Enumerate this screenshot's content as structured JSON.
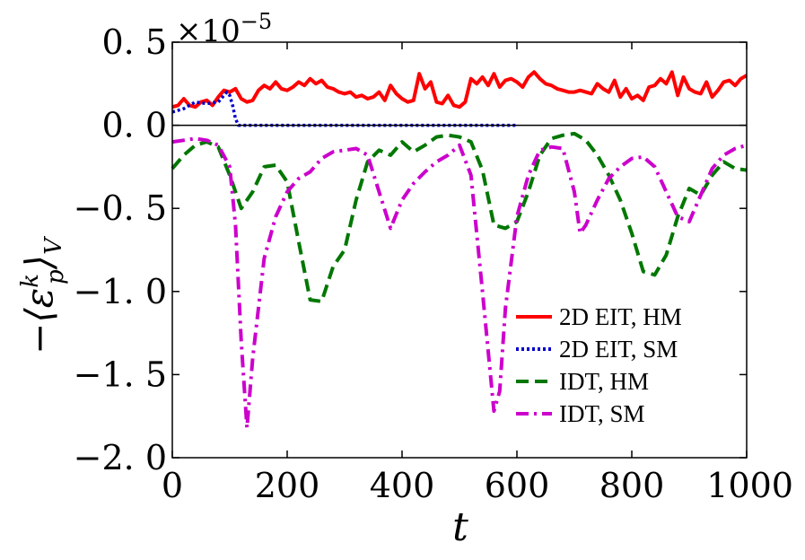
{
  "chart_data": {
    "type": "line",
    "xlabel": "t",
    "ylabel": "−⟨ε",
    "ylabel_sup": "k",
    "ylabel_sub": "p",
    "ylabel_tail": "⟩",
    "ylabel_sub2": "V",
    "y_offset_text": "×10",
    "y_offset_exp": "−5",
    "xlim": [
      0,
      1000
    ],
    "ylim": [
      -2.0,
      0.5
    ],
    "x_ticks": [
      0,
      200,
      400,
      600,
      800,
      1000
    ],
    "x_tick_labels": [
      "0",
      "200",
      "400",
      "600",
      "800",
      "1000"
    ],
    "y_ticks": [
      0.5,
      0.0,
      -0.5,
      -1.0,
      -1.5,
      -2.0
    ],
    "y_tick_labels": [
      "0. 5",
      "0. 0",
      "−0. 5",
      "−1. 0",
      "−1. 5",
      "−2. 0"
    ],
    "zero_line": true,
    "grid": false,
    "legend_position": "lower-right",
    "series": [
      {
        "name": "2D EIT, HM",
        "color": "#ff0000",
        "dash": "solid",
        "x": [
          0,
          10,
          20,
          30,
          40,
          50,
          60,
          70,
          80,
          90,
          100,
          110,
          120,
          130,
          140,
          150,
          160,
          170,
          180,
          190,
          200,
          210,
          220,
          230,
          240,
          250,
          260,
          270,
          280,
          290,
          300,
          310,
          320,
          330,
          340,
          350,
          360,
          370,
          380,
          390,
          400,
          410,
          420,
          430,
          440,
          450,
          460,
          470,
          480,
          490,
          500,
          510,
          520,
          530,
          540,
          550,
          560,
          570,
          580,
          590,
          600,
          610,
          620,
          630,
          640,
          650,
          660,
          670,
          680,
          690,
          700,
          710,
          720,
          730,
          740,
          750,
          760,
          770,
          780,
          790,
          800,
          810,
          820,
          830,
          840,
          850,
          860,
          870,
          880,
          890,
          900,
          910,
          920,
          930,
          940,
          950,
          960,
          970,
          980,
          990,
          1000
        ],
        "y": [
          0.11,
          0.12,
          0.16,
          0.12,
          0.11,
          0.14,
          0.15,
          0.12,
          0.17,
          0.21,
          0.2,
          0.22,
          0.16,
          0.14,
          0.15,
          0.21,
          0.24,
          0.22,
          0.26,
          0.22,
          0.21,
          0.23,
          0.26,
          0.24,
          0.28,
          0.25,
          0.27,
          0.23,
          0.22,
          0.2,
          0.19,
          0.2,
          0.17,
          0.18,
          0.16,
          0.17,
          0.2,
          0.15,
          0.24,
          0.19,
          0.16,
          0.14,
          0.15,
          0.31,
          0.22,
          0.26,
          0.14,
          0.13,
          0.18,
          0.12,
          0.11,
          0.14,
          0.28,
          0.25,
          0.29,
          0.24,
          0.31,
          0.23,
          0.27,
          0.28,
          0.26,
          0.23,
          0.29,
          0.32,
          0.28,
          0.25,
          0.24,
          0.22,
          0.21,
          0.2,
          0.2,
          0.21,
          0.2,
          0.19,
          0.25,
          0.22,
          0.2,
          0.27,
          0.17,
          0.22,
          0.16,
          0.18,
          0.15,
          0.23,
          0.24,
          0.28,
          0.25,
          0.32,
          0.18,
          0.29,
          0.22,
          0.2,
          0.19,
          0.26,
          0.17,
          0.21,
          0.26,
          0.27,
          0.24,
          0.28,
          0.3
        ],
        "x_src": "dense"
      },
      {
        "name": "2D EIT, SM",
        "color": "#0000cc",
        "dash": "dotted",
        "x": [
          0,
          20,
          40,
          60,
          80,
          95,
          100,
          105,
          110,
          115,
          120,
          150,
          200,
          300,
          400,
          500,
          600
        ],
        "y": [
          0.08,
          0.1,
          0.14,
          0.13,
          0.14,
          0.2,
          0.18,
          0.12,
          0.04,
          0.0,
          0.0,
          0.0,
          0.0,
          0.0,
          0.0,
          0.0,
          0.0
        ]
      },
      {
        "name": "IDT, HM",
        "color": "#007700",
        "dash": "dashed",
        "x": [
          0,
          20,
          40,
          60,
          80,
          100,
          120,
          140,
          160,
          180,
          200,
          220,
          240,
          260,
          280,
          300,
          320,
          340,
          360,
          380,
          400,
          420,
          440,
          460,
          480,
          500,
          520,
          540,
          560,
          580,
          600,
          620,
          640,
          660,
          680,
          700,
          720,
          740,
          760,
          780,
          800,
          820,
          840,
          860,
          880,
          900,
          920,
          940,
          960,
          980,
          1000
        ],
        "y": [
          -0.26,
          -0.18,
          -0.12,
          -0.1,
          -0.13,
          -0.3,
          -0.5,
          -0.4,
          -0.25,
          -0.24,
          -0.34,
          -0.7,
          -1.05,
          -1.06,
          -0.85,
          -0.75,
          -0.45,
          -0.22,
          -0.15,
          -0.18,
          -0.1,
          -0.16,
          -0.12,
          -0.07,
          -0.06,
          -0.07,
          -0.1,
          -0.27,
          -0.6,
          -0.62,
          -0.58,
          -0.4,
          -0.18,
          -0.08,
          -0.06,
          -0.05,
          -0.09,
          -0.18,
          -0.3,
          -0.45,
          -0.65,
          -0.88,
          -0.9,
          -0.78,
          -0.55,
          -0.38,
          -0.42,
          -0.3,
          -0.22,
          -0.26,
          -0.27
        ]
      },
      {
        "name": "IDT, SM",
        "color": "#cc00cc",
        "dash": "dashdot",
        "x": [
          0,
          20,
          40,
          60,
          80,
          100,
          110,
          120,
          130,
          140,
          160,
          180,
          200,
          220,
          240,
          260,
          280,
          300,
          320,
          340,
          360,
          380,
          400,
          420,
          440,
          460,
          480,
          500,
          520,
          540,
          560,
          570,
          580,
          600,
          620,
          640,
          660,
          680,
          700,
          710,
          720,
          740,
          760,
          780,
          800,
          820,
          840,
          860,
          880,
          900,
          920,
          940,
          960,
          980,
          1000
        ],
        "y": [
          -0.1,
          -0.09,
          -0.08,
          -0.09,
          -0.12,
          -0.25,
          -0.6,
          -1.3,
          -1.82,
          -1.4,
          -0.8,
          -0.55,
          -0.4,
          -0.32,
          -0.28,
          -0.2,
          -0.16,
          -0.15,
          -0.14,
          -0.18,
          -0.4,
          -0.62,
          -0.45,
          -0.35,
          -0.28,
          -0.22,
          -0.18,
          -0.12,
          -0.3,
          -1.0,
          -1.72,
          -1.6,
          -1.1,
          -0.55,
          -0.3,
          -0.15,
          -0.13,
          -0.14,
          -0.4,
          -0.65,
          -0.6,
          -0.45,
          -0.32,
          -0.25,
          -0.2,
          -0.19,
          -0.25,
          -0.4,
          -0.55,
          -0.58,
          -0.42,
          -0.26,
          -0.18,
          -0.14,
          -0.12
        ]
      }
    ]
  }
}
